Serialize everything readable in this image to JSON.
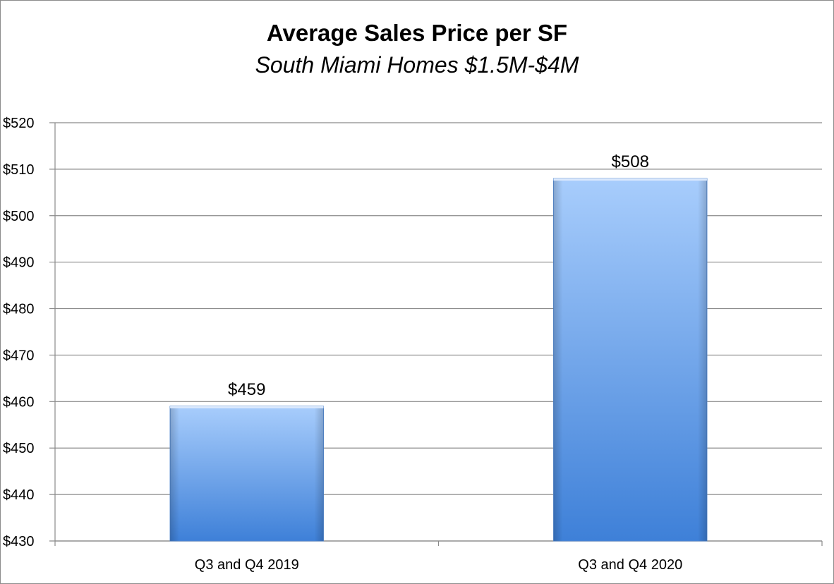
{
  "chart_data": {
    "type": "bar",
    "title": "Average Sales Price per SF",
    "subtitle": "South Miami Homes $1.5M-$4M",
    "categories": [
      "Q3 and Q4 2019",
      "Q3 and Q4 2020"
    ],
    "values": [
      459,
      508
    ],
    "data_labels": [
      "$459",
      "$508"
    ],
    "ylim": [
      430,
      520
    ],
    "y_ticks": [
      430,
      440,
      450,
      460,
      470,
      480,
      490,
      500,
      510,
      520
    ],
    "y_tick_labels": [
      "$430",
      "$440",
      "$450",
      "$460",
      "$470",
      "$480",
      "$490",
      "$500",
      "$510",
      "$520"
    ],
    "xlabel": "",
    "ylabel": "",
    "grid": true,
    "legend": "none",
    "bar_color_top": "#a8cdfc",
    "bar_color_bottom": "#3e80d8"
  }
}
